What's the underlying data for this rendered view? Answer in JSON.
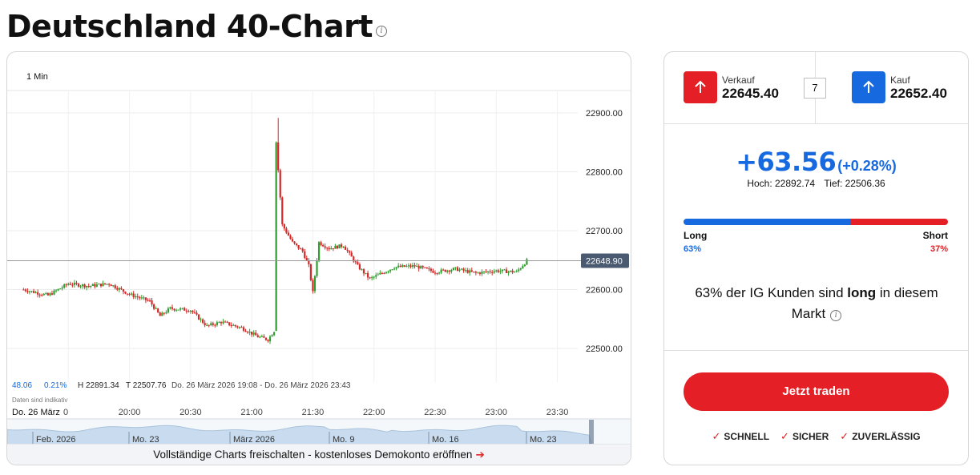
{
  "page": {
    "title": "Deutschland 40-Chart"
  },
  "chart": {
    "timeframe": "1 Min",
    "y_ticks": [
      "22900.00",
      "22800.00",
      "22700.00",
      "22600.00",
      "22500.00"
    ],
    "current_price": "22648.90",
    "x_ticks": [
      "Do. 26 März",
      "0",
      "20:00",
      "20:30",
      "21:00",
      "21:30",
      "22:00",
      "22:30",
      "23:00",
      "23:30"
    ],
    "stats": {
      "change": "48.06",
      "change_pct": "0.21%",
      "high": "H 22891.34",
      "low": "T 22507.76",
      "range": "Do. 26 März 2026 19:08 - Do. 26 März 2026 23:43"
    },
    "indicative_note": "Daten sind indikativ",
    "navigator_labels": [
      "Feb. 2026",
      "Mo. 23",
      "März 2026",
      "Mo. 9",
      "Mo. 16",
      "Mo. 23"
    ],
    "colors": {
      "up": "#2f9e2f",
      "down": "#d62828",
      "grid": "#ececec",
      "price_tag": "#4a5a70",
      "navigator": "#c9dcef"
    }
  },
  "chart_data": {
    "type": "candlestick",
    "title": "",
    "interval": "1 Min",
    "x_range": [
      "19:08",
      "23:43"
    ],
    "ylim": [
      22460,
      22930
    ],
    "last_price": 22648.9,
    "high": 22891.34,
    "low": 22507.76,
    "path": [
      {
        "t": "19:08",
        "price": 22600
      },
      {
        "t": "19:20",
        "price": 22590
      },
      {
        "t": "19:30",
        "price": 22610
      },
      {
        "t": "19:40",
        "price": 22606
      },
      {
        "t": "19:50",
        "price": 22610
      },
      {
        "t": "20:00",
        "price": 22592
      },
      {
        "t": "20:10",
        "price": 22580
      },
      {
        "t": "20:15",
        "price": 22555
      },
      {
        "t": "20:20",
        "price": 22568
      },
      {
        "t": "20:30",
        "price": 22565
      },
      {
        "t": "20:38",
        "price": 22538
      },
      {
        "t": "20:45",
        "price": 22545
      },
      {
        "t": "20:55",
        "price": 22535
      },
      {
        "t": "21:03",
        "price": 22520
      },
      {
        "t": "21:08",
        "price": 22515
      },
      {
        "t": "21:11",
        "price": 22530
      },
      {
        "t": "21:12",
        "price": 22850
      },
      {
        "t": "21:15",
        "price": 22710
      },
      {
        "t": "21:20",
        "price": 22680
      },
      {
        "t": "21:25",
        "price": 22665
      },
      {
        "t": "21:28",
        "price": 22640
      },
      {
        "t": "21:30",
        "price": 22595
      },
      {
        "t": "21:33",
        "price": 22680
      },
      {
        "t": "21:38",
        "price": 22670
      },
      {
        "t": "21:45",
        "price": 22675
      },
      {
        "t": "21:52",
        "price": 22640
      },
      {
        "t": "21:58",
        "price": 22618
      },
      {
        "t": "22:10",
        "price": 22638
      },
      {
        "t": "22:20",
        "price": 22640
      },
      {
        "t": "22:30",
        "price": 22630
      },
      {
        "t": "22:40",
        "price": 22635
      },
      {
        "t": "22:50",
        "price": 22628
      },
      {
        "t": "23:00",
        "price": 22632
      },
      {
        "t": "23:10",
        "price": 22630
      },
      {
        "t": "23:15",
        "price": 22649
      }
    ]
  },
  "side": {
    "sell": {
      "label": "Verkauf",
      "value": "22645.40"
    },
    "buy": {
      "label": "Kauf",
      "value": "22652.40"
    },
    "spread": "7",
    "change": "+63.56",
    "change_pct": "(+0.28%)",
    "high": "Hoch: 22892.74",
    "low": "Tief: 22506.36",
    "sentiment": {
      "long_label": "Long",
      "short_label": "Short",
      "long_pct_text": "63%",
      "short_pct_text": "37%",
      "long_fraction": 0.63,
      "text_pre": "63% der IG Kunden sind",
      "text_bold": "long",
      "text_post": "in diesem Markt"
    },
    "trade_button": "Jetzt traden",
    "features": [
      "SCHNELL",
      "SICHER",
      "ZUVERLÄSSIG"
    ]
  },
  "footer": {
    "unlock_text": "Vollständige Charts freischalten - kostenloses Demokonto eröffnen",
    "arrow": "➔"
  }
}
